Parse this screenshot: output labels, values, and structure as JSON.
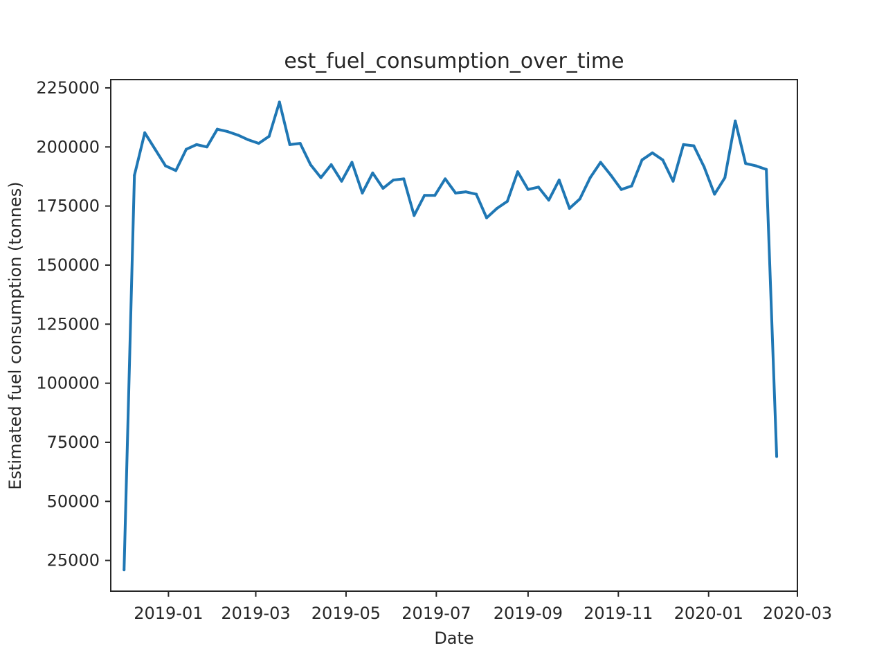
{
  "chart_data": {
    "type": "line",
    "title": "est_fuel_consumption_over_time",
    "xlabel": "Date",
    "ylabel": "Estimated fuel consumption (tonnes)",
    "x_type": "date",
    "xlim": [
      "2018-11-23",
      "2020-03-01"
    ],
    "ylim": [
      12000,
      228500
    ],
    "x_ticks": [
      {
        "date": "2019-01-01",
        "label": "2019-01"
      },
      {
        "date": "2019-03-01",
        "label": "2019-03"
      },
      {
        "date": "2019-05-01",
        "label": "2019-05"
      },
      {
        "date": "2019-07-01",
        "label": "2019-07"
      },
      {
        "date": "2019-09-01",
        "label": "2019-09"
      },
      {
        "date": "2019-11-01",
        "label": "2019-11"
      },
      {
        "date": "2020-01-01",
        "label": "2020-01"
      },
      {
        "date": "2020-03-01",
        "label": "2020-03"
      }
    ],
    "y_ticks": [
      25000,
      50000,
      75000,
      100000,
      125000,
      150000,
      175000,
      200000,
      225000
    ],
    "grid": false,
    "legend": "none",
    "series": [
      {
        "color": "#1f77b4",
        "x": [
          "2018-12-02",
          "2018-12-09",
          "2018-12-16",
          "2018-12-23",
          "2018-12-30",
          "2019-01-06",
          "2019-01-13",
          "2019-01-20",
          "2019-01-27",
          "2019-02-03",
          "2019-02-10",
          "2019-02-17",
          "2019-02-24",
          "2019-03-03",
          "2019-03-10",
          "2019-03-17",
          "2019-03-24",
          "2019-03-31",
          "2019-04-07",
          "2019-04-14",
          "2019-04-21",
          "2019-04-28",
          "2019-05-05",
          "2019-05-12",
          "2019-05-19",
          "2019-05-26",
          "2019-06-02",
          "2019-06-09",
          "2019-06-16",
          "2019-06-23",
          "2019-06-30",
          "2019-07-07",
          "2019-07-14",
          "2019-07-21",
          "2019-07-28",
          "2019-08-04",
          "2019-08-11",
          "2019-08-18",
          "2019-08-25",
          "2019-09-01",
          "2019-09-08",
          "2019-09-15",
          "2019-09-22",
          "2019-09-29",
          "2019-10-06",
          "2019-10-13",
          "2019-10-20",
          "2019-10-27",
          "2019-11-03",
          "2019-11-10",
          "2019-11-17",
          "2019-11-24",
          "2019-12-01",
          "2019-12-08",
          "2019-12-15",
          "2019-12-22",
          "2019-12-29",
          "2020-01-05",
          "2020-01-12",
          "2020-01-19",
          "2020-01-26",
          "2020-02-02",
          "2020-02-09",
          "2020-02-16"
        ],
        "y": [
          21000,
          188000,
          206000,
          199000,
          192000,
          190000,
          199000,
          201000,
          200000,
          207500,
          206500,
          205000,
          203000,
          201500,
          204500,
          219000,
          201000,
          201500,
          192500,
          187000,
          192500,
          185500,
          193500,
          180500,
          189000,
          182500,
          186000,
          186500,
          171000,
          179500,
          179500,
          186500,
          180500,
          181000,
          180000,
          170000,
          174000,
          177000,
          189500,
          182000,
          183000,
          177500,
          186000,
          174000,
          178000,
          187000,
          193500,
          188000,
          182000,
          183500,
          194500,
          197500,
          194500,
          185500,
          201000,
          200500,
          191500,
          180000,
          187000,
          211000,
          193000,
          192000,
          190500,
          69000
        ]
      }
    ]
  }
}
